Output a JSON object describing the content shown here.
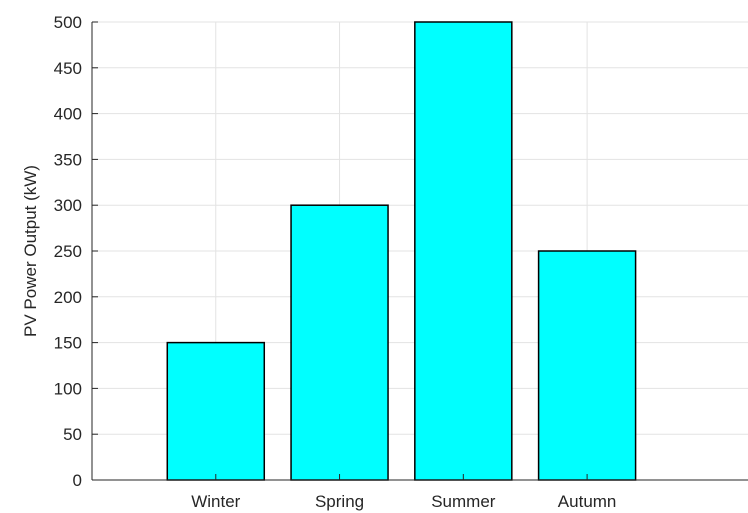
{
  "chart_data": {
    "type": "bar",
    "categories": [
      "Winter",
      "Spring",
      "Summer",
      "Autumn"
    ],
    "values": [
      150,
      300,
      500,
      250
    ],
    "title": "",
    "xlabel": "",
    "ylabel": "PV Power Output (kW)",
    "ylim": [
      0,
      500
    ],
    "yticks": [
      0,
      50,
      100,
      150,
      200,
      250,
      300,
      350,
      400,
      450,
      500
    ],
    "x_extra_gridline_positions": [
      1,
      2,
      3,
      4
    ],
    "grid": true,
    "bar_color": "#00FFFF",
    "bar_edge_color": "#000000"
  }
}
